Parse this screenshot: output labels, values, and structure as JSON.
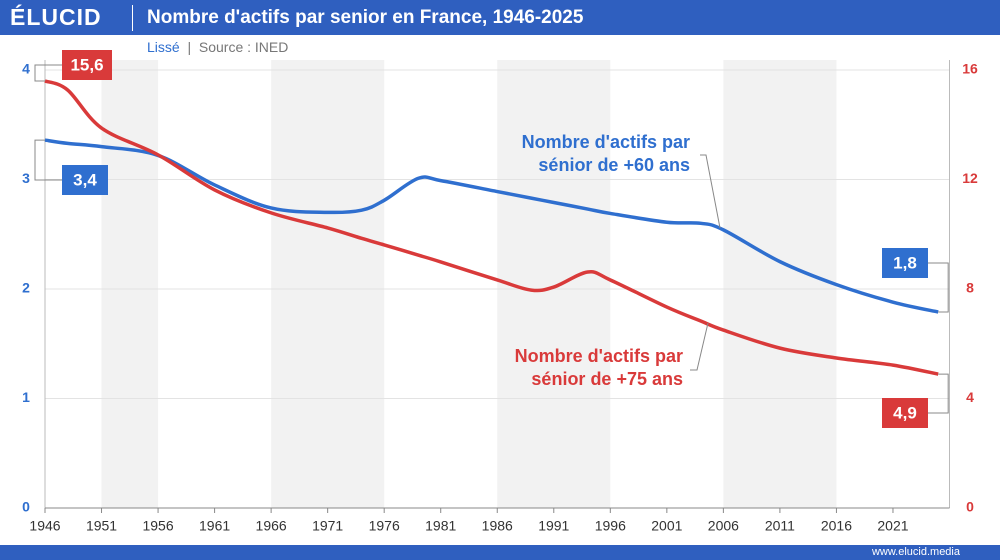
{
  "header": {
    "logo": "ÉLUCID",
    "subtitle": "Lissé",
    "source": "Source : INED",
    "footer": "www.elucid.media"
  },
  "chart_data": {
    "type": "line",
    "title": "Nombre d'actifs par senior en France, 1946-2025",
    "x": [
      1946,
      1948,
      1951,
      1956,
      1961,
      1966,
      1971,
      1974,
      1976,
      1979,
      1981,
      1986,
      1989,
      1991,
      1994,
      1996,
      2001,
      2004,
      2006,
      2011,
      2016,
      2021,
      2025
    ],
    "xlim": [
      1946,
      2026
    ],
    "xticks": [
      1946,
      1951,
      1956,
      1961,
      1966,
      1971,
      1976,
      1981,
      1986,
      1991,
      1996,
      2001,
      2006,
      2011,
      2016,
      2021
    ],
    "ylim": [
      0,
      4
    ],
    "yticks": [
      0,
      1,
      2,
      3,
      4
    ],
    "y2lim": [
      0,
      16
    ],
    "y2ticks": [
      0,
      4,
      8,
      12,
      16
    ],
    "grid": true,
    "shaded_ranges": [
      [
        1951,
        1956
      ],
      [
        1966,
        1976
      ],
      [
        1986,
        1996
      ],
      [
        2006,
        2016
      ]
    ],
    "series": [
      {
        "name": "Nombre d'actifs par sénior de +60 ans",
        "color": "#2f6fcf",
        "axis": "y",
        "values": [
          3.36,
          3.33,
          3.3,
          3.22,
          2.95,
          2.74,
          2.7,
          2.72,
          2.81,
          3.01,
          2.99,
          2.89,
          2.83,
          2.79,
          2.73,
          2.69,
          2.61,
          2.6,
          2.54,
          2.25,
          2.04,
          1.88,
          1.79
        ],
        "value_labels": [
          "3,4",
          null,
          null,
          null,
          null,
          null,
          null,
          null,
          null,
          null,
          null,
          null,
          null,
          null,
          null,
          null,
          null,
          null,
          null,
          null,
          null,
          null,
          "1,8"
        ]
      },
      {
        "name": "Nombre d'actifs par sénior de +75 ans",
        "color": "#d93a3a",
        "axis": "y2",
        "values": [
          15.6,
          15.27,
          13.88,
          12.9,
          11.62,
          10.78,
          10.23,
          9.85,
          9.61,
          9.24,
          8.99,
          8.33,
          7.96,
          8.07,
          8.62,
          8.33,
          7.34,
          6.83,
          6.5,
          5.84,
          5.48,
          5.22,
          4.89
        ],
        "value_labels": [
          "15,6",
          null,
          null,
          null,
          null,
          null,
          null,
          null,
          null,
          null,
          null,
          null,
          null,
          null,
          null,
          null,
          null,
          null,
          null,
          null,
          null,
          null,
          "4,9"
        ]
      }
    ]
  }
}
